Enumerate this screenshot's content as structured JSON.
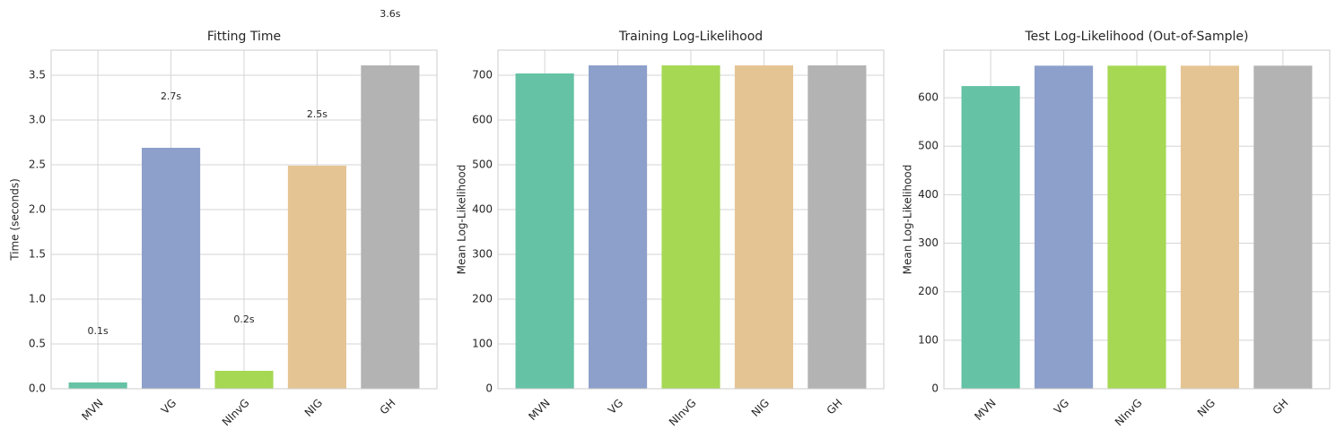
{
  "chart_data": [
    {
      "type": "bar",
      "title": "Fitting Time",
      "ylabel": "Time (seconds)",
      "categories": [
        "MVN",
        "VG",
        "NInvG",
        "NIG",
        "GH"
      ],
      "values": [
        0.07,
        2.69,
        0.2,
        2.49,
        3.61
      ],
      "value_labels": [
        "0.1s",
        "2.7s",
        "0.2s",
        "2.5s",
        "3.6s"
      ],
      "colors": [
        "#66c2a5",
        "#8da0cb",
        "#a6d854",
        "#e5c494",
        "#b3b3b3"
      ],
      "ylim": [
        0,
        3.78
      ],
      "yticks": [
        {
          "value": 0,
          "label": "0.0"
        },
        0.5,
        {
          "value": 1,
          "label": "1.0"
        },
        1.5,
        {
          "value": 2,
          "label": "2.0"
        },
        2.5,
        {
          "value": 3,
          "label": "3.0"
        },
        3.5
      ],
      "grid": true
    },
    {
      "type": "bar",
      "title": "Training Log-Likelihood",
      "ylabel": "Mean Log-Likelihood",
      "categories": [
        "MVN",
        "VG",
        "NInvG",
        "NIG",
        "GH"
      ],
      "values": [
        704,
        722,
        722,
        722,
        722
      ],
      "colors": [
        "#66c2a5",
        "#8da0cb",
        "#a6d854",
        "#e5c494",
        "#b3b3b3"
      ],
      "ylim": [
        0,
        756
      ],
      "yticks": [
        0,
        100,
        200,
        300,
        400,
        500,
        600,
        700
      ],
      "grid": true
    },
    {
      "type": "bar",
      "title": "Test Log-Likelihood (Out-of-Sample)",
      "ylabel": "Mean Log-Likelihood",
      "categories": [
        "MVN",
        "VG",
        "NInvG",
        "NIG",
        "GH"
      ],
      "values": [
        624,
        666,
        666,
        666,
        666
      ],
      "colors": [
        "#66c2a5",
        "#8da0cb",
        "#a6d854",
        "#e5c494",
        "#b3b3b3"
      ],
      "ylim": [
        0,
        698
      ],
      "yticks": [
        0,
        100,
        200,
        300,
        400,
        500,
        600
      ],
      "grid": true
    }
  ]
}
